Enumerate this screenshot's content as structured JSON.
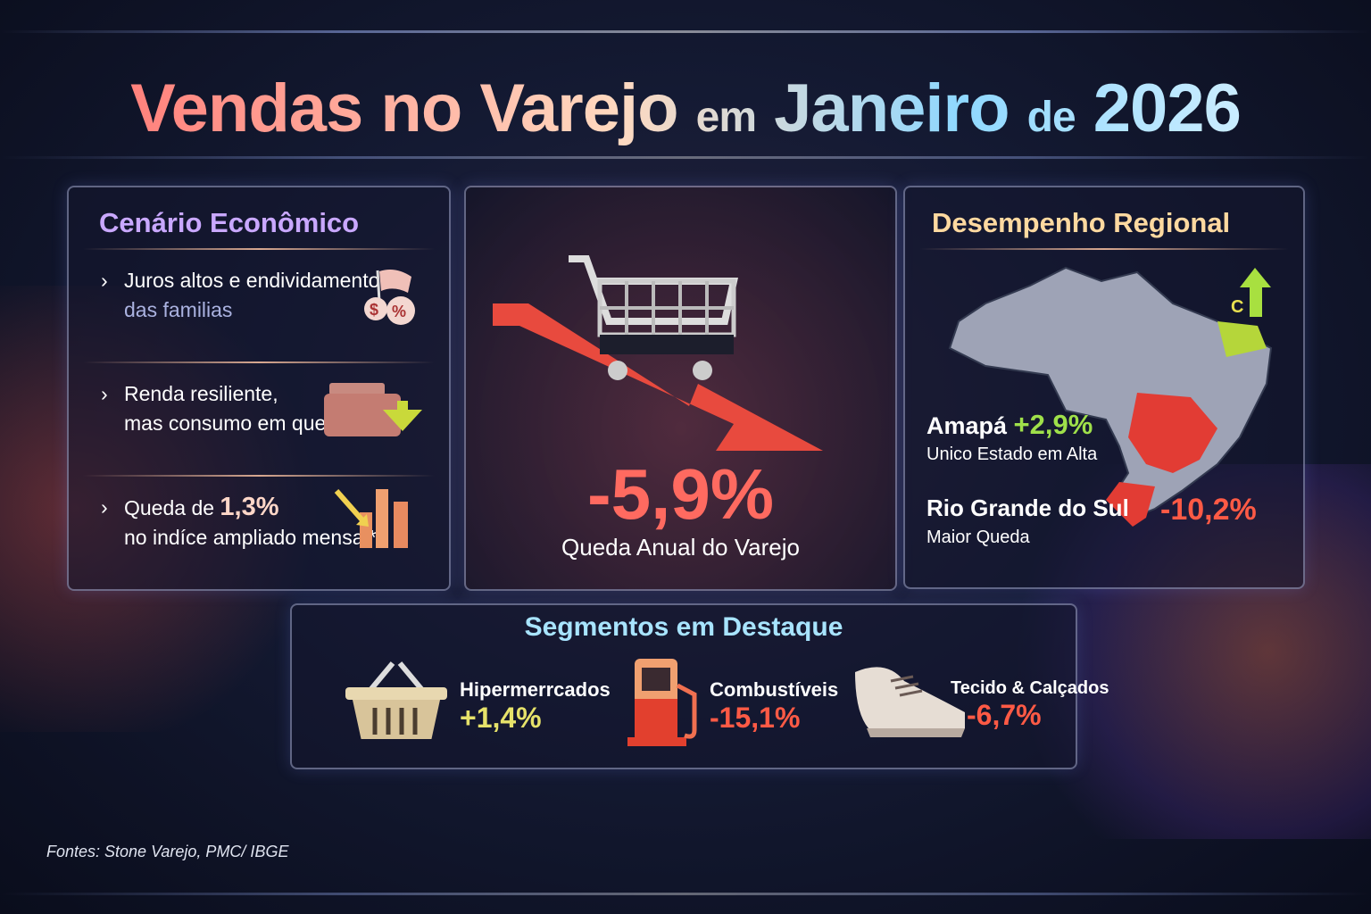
{
  "title": {
    "part1": "Vendas no Varejo",
    "part2": "em",
    "part3": "Janeiro",
    "part4": "de",
    "part5": "2026"
  },
  "cenario": {
    "heading": "Cenário Econômico",
    "items": [
      {
        "line1": "Juros altos e endividamento",
        "line2": "das familias",
        "icon": "money-percent-icon"
      },
      {
        "line1": "Renda resiliente,",
        "line2": "mas consumo em queda",
        "icon": "wallet-down-icon"
      },
      {
        "line1_prefix": "Queda de ",
        "line1_value": "1,3%",
        "line2": "no indíce ampliado mensal*",
        "icon": "bar-chart-down-icon"
      }
    ]
  },
  "center": {
    "value": "-5,9%",
    "label": "Queda Anual do Varejo",
    "icon": "shopping-cart-down-icon"
  },
  "regional": {
    "heading": "Desempenho Regional",
    "top": {
      "state": "Amapá",
      "value": "+2,9%",
      "sub": "Unico Estado em Alta"
    },
    "bottom": {
      "state": "Rio Grande do Sul",
      "value": "-10,2%",
      "sub": "Maior Queda"
    },
    "map_marker": "C"
  },
  "segments": {
    "heading": "Segmentos em Destaque",
    "items": [
      {
        "name": "Hipermerrcados",
        "value": "+1,4%",
        "icon": "basket-icon",
        "color": "#e6e26a"
      },
      {
        "name": "Combustíveis",
        "value": "-15,1%",
        "icon": "fuel-pump-icon",
        "color": "#ff5a45"
      },
      {
        "name": "Tecido & Calçados",
        "value": "-6,7%",
        "icon": "shoe-icon",
        "color": "#ff5a45"
      }
    ]
  },
  "footer": {
    "sources": "Fontes: Stone Varejo, PMC/ IBGE"
  },
  "colors": {
    "positive": "#9fe04a",
    "negative": "#ff5a45",
    "accent_purple": "#c9a8ff",
    "accent_gold": "#ffd9a0",
    "segments_heading": "#a8e4ff"
  }
}
